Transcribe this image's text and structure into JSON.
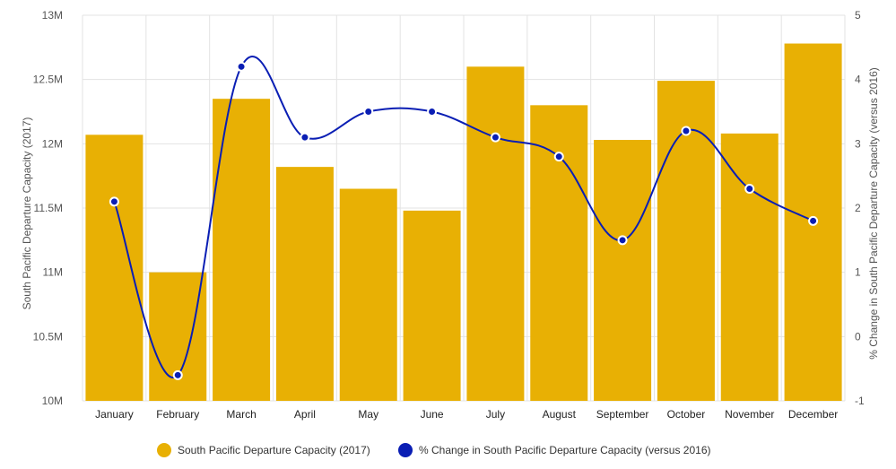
{
  "chart_data": {
    "type": "bar+line",
    "categories": [
      "January",
      "February",
      "March",
      "April",
      "May",
      "June",
      "July",
      "August",
      "September",
      "October",
      "November",
      "December"
    ],
    "series": [
      {
        "name": "South Pacific Departure Capacity (2017)",
        "type": "bar",
        "axis": "left",
        "color": "#e8b004",
        "values": [
          12070000,
          11000000,
          12350000,
          11820000,
          11650000,
          11480000,
          12600000,
          12300000,
          12030000,
          12490000,
          12080000,
          12780000
        ]
      },
      {
        "name": "% Change in South Pacific Departure Capacity (versus 2016)",
        "type": "line",
        "axis": "right",
        "color": "#0a1eb4",
        "values": [
          2.1,
          -0.6,
          4.2,
          3.1,
          3.5,
          3.5,
          3.1,
          2.8,
          1.5,
          3.2,
          2.3,
          1.8
        ]
      }
    ],
    "ylabel": "South Pacific Departure Capacity (2017)",
    "y2label": "% Change in South Pacific Departure Capacity (versus 2016)",
    "ylim": [
      10000000,
      13000000
    ],
    "y2lim": [
      -1,
      5
    ],
    "yticks": [
      {
        "value": 10000000,
        "label": "10M"
      },
      {
        "value": 10500000,
        "label": "10.5M"
      },
      {
        "value": 11000000,
        "label": "11M"
      },
      {
        "value": 11500000,
        "label": "11.5M"
      },
      {
        "value": 12000000,
        "label": "12M"
      },
      {
        "value": 12500000,
        "label": "12.5M"
      },
      {
        "value": 13000000,
        "label": "13M"
      }
    ],
    "y2ticks": [
      {
        "value": -1,
        "label": "-1"
      },
      {
        "value": 0,
        "label": "0"
      },
      {
        "value": 1,
        "label": "1"
      },
      {
        "value": 2,
        "label": "2"
      },
      {
        "value": 3,
        "label": "3"
      },
      {
        "value": 4,
        "label": "4"
      },
      {
        "value": 5,
        "label": "5"
      }
    ],
    "grid": true,
    "legend": "bottom"
  }
}
